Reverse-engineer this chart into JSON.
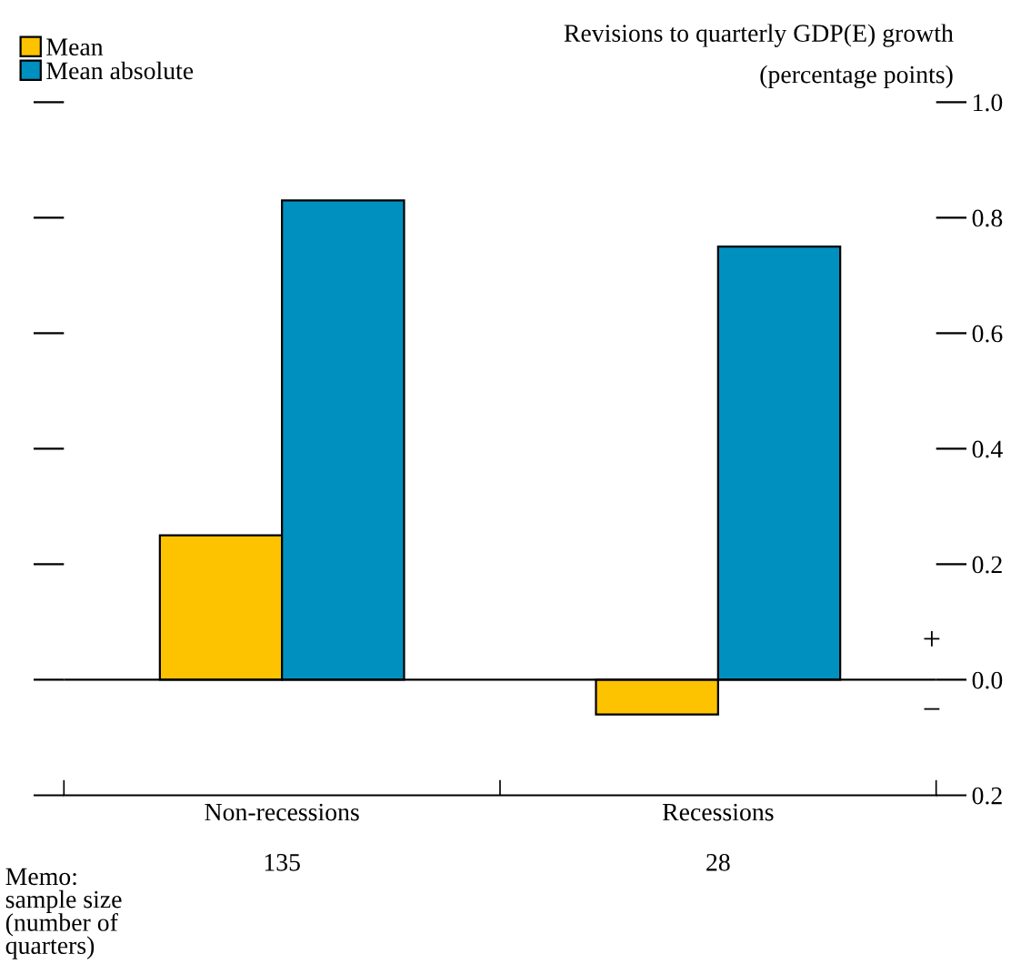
{
  "chart_data": {
    "type": "bar",
    "title": "Revisions to quarterly GDP(E) growth",
    "ylabel": "(percentage points)",
    "categories": [
      "Non-recessions",
      "Recessions"
    ],
    "series": [
      {
        "name": "Mean",
        "color": "#fdc300",
        "values": [
          0.25,
          -0.06
        ]
      },
      {
        "name": "Mean absolute",
        "color": "#0090c0",
        "values": [
          0.83,
          0.75
        ]
      }
    ],
    "ylim": [
      -0.2,
      1.0
    ],
    "yticks": [
      {
        "value": -0.2,
        "label": "0.2"
      },
      {
        "value": 0.0,
        "label": "0.0"
      },
      {
        "value": 0.2,
        "label": "0.2"
      },
      {
        "value": 0.4,
        "label": "0.4"
      },
      {
        "value": 0.6,
        "label": "0.6"
      },
      {
        "value": 0.8,
        "label": "0.8"
      },
      {
        "value": 1.0,
        "label": "1.0"
      }
    ],
    "ref_lines": [
      {
        "axis": "y",
        "value": 0,
        "label": null,
        "color": "#000000"
      }
    ],
    "annotations": [
      "Memo:\nsample size\n(number of\nquarters)",
      "135",
      "28",
      "+",
      "−"
    ],
    "legend": "top left",
    "grid": false
  }
}
